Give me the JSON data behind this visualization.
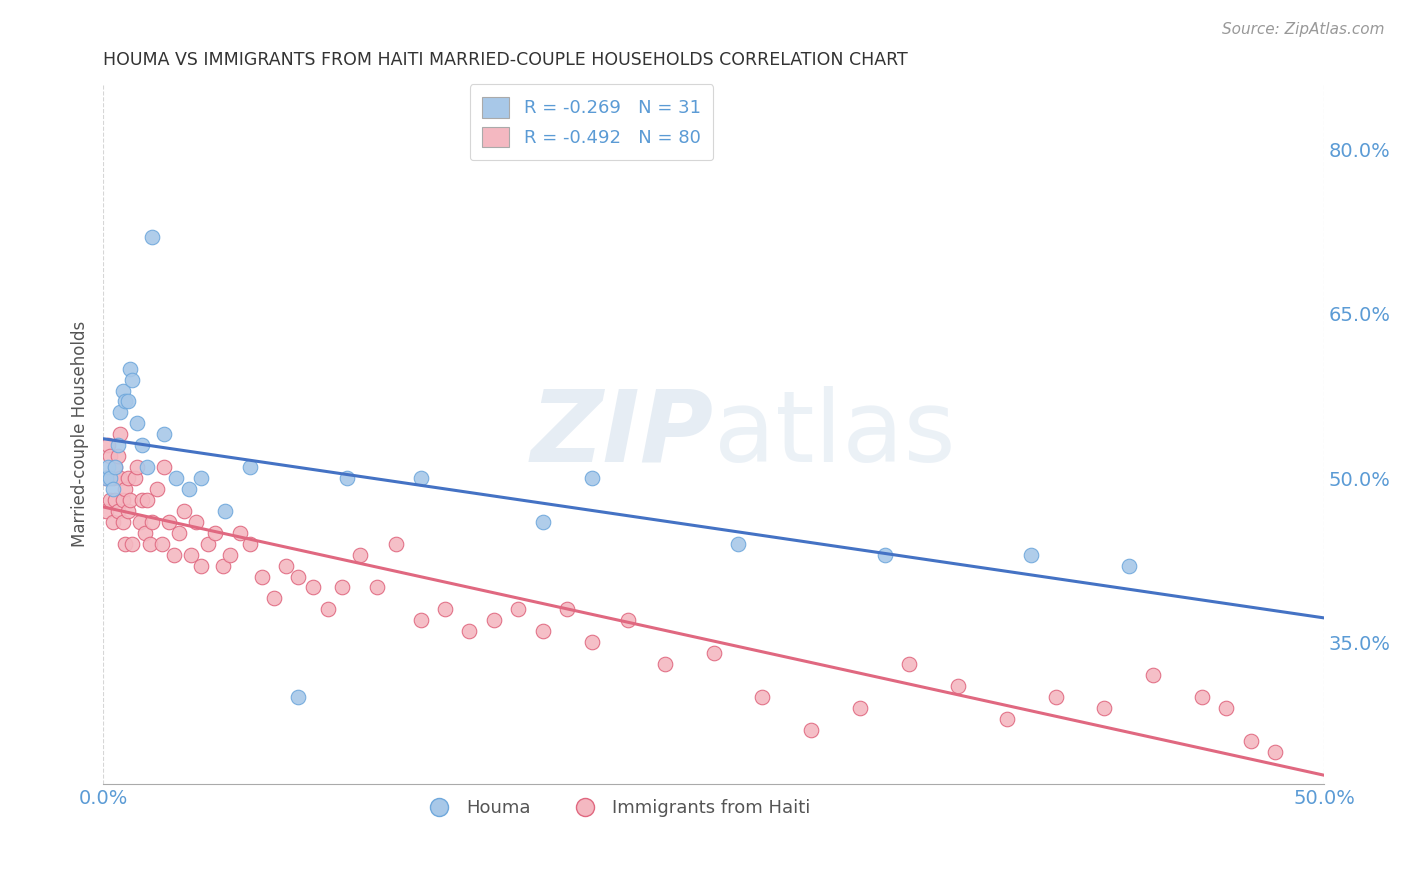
{
  "title": "HOUMA VS IMMIGRANTS FROM HAITI MARRIED-COUPLE HOUSEHOLDS CORRELATION CHART",
  "source": "Source: ZipAtlas.com",
  "ylabel_label": "Married-couple Households",
  "xlim": [
    0.0,
    0.5
  ],
  "ylim": [
    0.22,
    0.86
  ],
  "houma": {
    "label": "Houma",
    "R": -0.269,
    "N": 31,
    "color": "#a8c8e8",
    "edge_color": "#6fa8dc",
    "line_color": "#4472c4",
    "x": [
      0.001,
      0.002,
      0.003,
      0.004,
      0.005,
      0.006,
      0.007,
      0.008,
      0.009,
      0.01,
      0.011,
      0.012,
      0.014,
      0.016,
      0.018,
      0.02,
      0.025,
      0.03,
      0.035,
      0.04,
      0.05,
      0.06,
      0.08,
      0.1,
      0.13,
      0.18,
      0.2,
      0.26,
      0.32,
      0.38,
      0.42
    ],
    "y": [
      0.5,
      0.51,
      0.5,
      0.49,
      0.51,
      0.53,
      0.56,
      0.58,
      0.57,
      0.57,
      0.6,
      0.59,
      0.55,
      0.53,
      0.51,
      0.72,
      0.54,
      0.5,
      0.49,
      0.5,
      0.47,
      0.51,
      0.3,
      0.5,
      0.5,
      0.46,
      0.5,
      0.44,
      0.43,
      0.43,
      0.42
    ]
  },
  "haiti": {
    "label": "Immigrants from Haiti",
    "R": -0.492,
    "N": 80,
    "color": "#f4b8c1",
    "edge_color": "#e06880",
    "line_color": "#e06880",
    "x": [
      0.001,
      0.001,
      0.002,
      0.002,
      0.003,
      0.003,
      0.004,
      0.004,
      0.005,
      0.005,
      0.006,
      0.006,
      0.007,
      0.007,
      0.008,
      0.008,
      0.009,
      0.009,
      0.01,
      0.01,
      0.011,
      0.012,
      0.013,
      0.014,
      0.015,
      0.016,
      0.017,
      0.018,
      0.019,
      0.02,
      0.022,
      0.024,
      0.025,
      0.027,
      0.029,
      0.031,
      0.033,
      0.036,
      0.038,
      0.04,
      0.043,
      0.046,
      0.049,
      0.052,
      0.056,
      0.06,
      0.065,
      0.07,
      0.075,
      0.08,
      0.086,
      0.092,
      0.098,
      0.105,
      0.112,
      0.12,
      0.13,
      0.14,
      0.15,
      0.16,
      0.17,
      0.18,
      0.19,
      0.2,
      0.215,
      0.23,
      0.25,
      0.27,
      0.29,
      0.31,
      0.33,
      0.35,
      0.37,
      0.39,
      0.41,
      0.43,
      0.45,
      0.46,
      0.47,
      0.48
    ],
    "y": [
      0.47,
      0.5,
      0.5,
      0.53,
      0.48,
      0.52,
      0.46,
      0.5,
      0.48,
      0.51,
      0.47,
      0.52,
      0.5,
      0.54,
      0.48,
      0.46,
      0.49,
      0.44,
      0.5,
      0.47,
      0.48,
      0.44,
      0.5,
      0.51,
      0.46,
      0.48,
      0.45,
      0.48,
      0.44,
      0.46,
      0.49,
      0.44,
      0.51,
      0.46,
      0.43,
      0.45,
      0.47,
      0.43,
      0.46,
      0.42,
      0.44,
      0.45,
      0.42,
      0.43,
      0.45,
      0.44,
      0.41,
      0.39,
      0.42,
      0.41,
      0.4,
      0.38,
      0.4,
      0.43,
      0.4,
      0.44,
      0.37,
      0.38,
      0.36,
      0.37,
      0.38,
      0.36,
      0.38,
      0.35,
      0.37,
      0.33,
      0.34,
      0.3,
      0.27,
      0.29,
      0.33,
      0.31,
      0.28,
      0.3,
      0.29,
      0.32,
      0.3,
      0.29,
      0.26,
      0.25
    ]
  },
  "watermark_zip": "ZIP",
  "watermark_atlas": "atlas",
  "background_color": "#ffffff",
  "grid_color": "#cccccc"
}
